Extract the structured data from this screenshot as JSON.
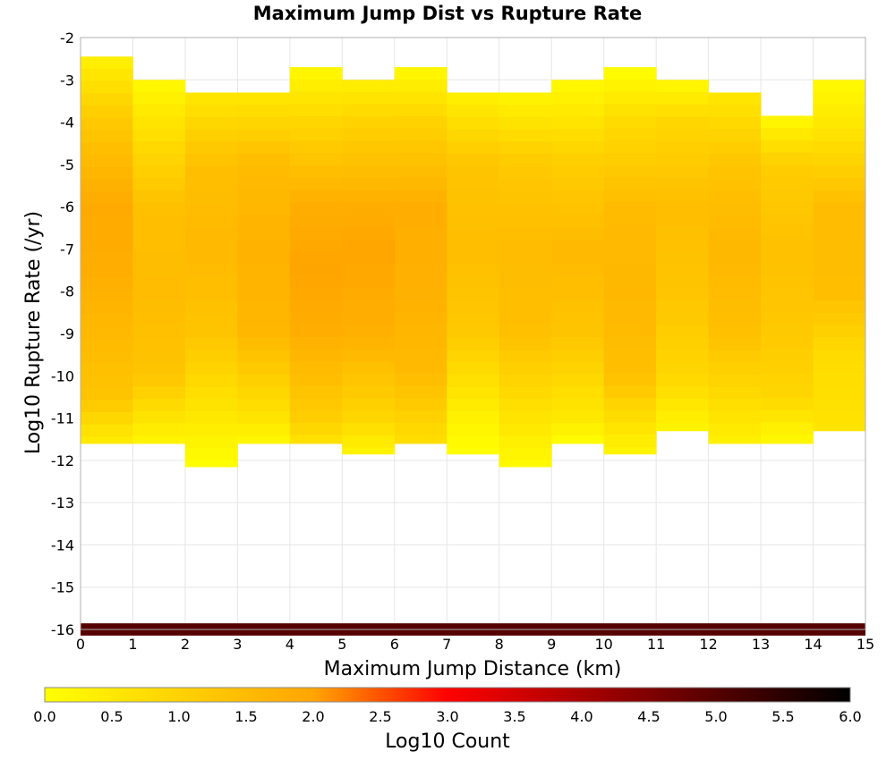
{
  "chart_data": {
    "type": "heatmap",
    "title": "Maximum Jump Dist vs Rupture Rate",
    "xlabel": "Maximum Jump Distance (km)",
    "ylabel": "Log10 Rupture Rate (/yr)",
    "xlim": [
      0,
      15
    ],
    "ylim": [
      -16,
      -2
    ],
    "x_ticks": [
      "0",
      "1",
      "2",
      "3",
      "4",
      "5",
      "6",
      "7",
      "8",
      "9",
      "10",
      "11",
      "12",
      "13",
      "14",
      "15"
    ],
    "y_ticks": [
      "-2",
      "-3",
      "-4",
      "-5",
      "-6",
      "-7",
      "-8",
      "-9",
      "-10",
      "-11",
      "-12",
      "-13",
      "-14",
      "-15",
      "-16"
    ],
    "y_bin_width": 0.29,
    "x_bin_width": 1,
    "x_bins": [
      0.5,
      1.5,
      2.5,
      3.5,
      4.5,
      5.5,
      6.5,
      7.5,
      8.5,
      9.5,
      10.5,
      11.5,
      12.5,
      13.5,
      14.5
    ],
    "grid": true,
    "colorbar": {
      "label": "Log10 Count",
      "range": [
        0,
        6
      ],
      "ticks": [
        "0.0",
        "0.5",
        "1.0",
        "1.5",
        "2.0",
        "2.5",
        "3.0",
        "3.5",
        "4.0",
        "4.5",
        "5.0",
        "5.5",
        "6.0"
      ],
      "colors": [
        "#ffff00",
        "#ffa500",
        "#ff0000",
        "#000000"
      ],
      "color_stops": [
        0,
        2,
        3,
        6
      ]
    },
    "columns": [
      {
        "x": 0.5,
        "y_top": -2.45,
        "y_bottom": -11.6,
        "profile": [
          [
            -2.45,
            0.3
          ],
          [
            -4,
            1.2
          ],
          [
            -6,
            1.9
          ],
          [
            -7.5,
            1.8
          ],
          [
            -9,
            1.55
          ],
          [
            -10.5,
            1.3
          ],
          [
            -11.6,
            0.4
          ]
        ]
      },
      {
        "x": 1.5,
        "y_top": -3.0,
        "y_bottom": -11.6,
        "profile": [
          [
            -3,
            0.1
          ],
          [
            -4,
            0.6
          ],
          [
            -6,
            1.4
          ],
          [
            -8,
            1.5
          ],
          [
            -10,
            1.3
          ],
          [
            -11.6,
            0.2
          ]
        ]
      },
      {
        "x": 2.5,
        "y_top": -3.3,
        "y_bottom": -12.15,
        "profile": [
          [
            -3.3,
            0.5
          ],
          [
            -5,
            1.4
          ],
          [
            -7,
            1.55
          ],
          [
            -9,
            1.3
          ],
          [
            -11,
            0.5
          ],
          [
            -12.15,
            0
          ]
        ]
      },
      {
        "x": 3.5,
        "y_top": -3.3,
        "y_bottom": -11.6,
        "profile": [
          [
            -3.3,
            0.5
          ],
          [
            -5,
            1.5
          ],
          [
            -7,
            1.7
          ],
          [
            -9,
            1.6
          ],
          [
            -11,
            0.6
          ],
          [
            -11.6,
            0.1
          ]
        ]
      },
      {
        "x": 4.5,
        "y_top": -2.7,
        "y_bottom": -11.6,
        "profile": [
          [
            -2.7,
            0.1
          ],
          [
            -4,
            0.9
          ],
          [
            -6,
            1.8
          ],
          [
            -7.5,
            2.0
          ],
          [
            -9,
            1.8
          ],
          [
            -11,
            1.1
          ],
          [
            -11.6,
            0.6
          ]
        ]
      },
      {
        "x": 5.5,
        "y_top": -3.0,
        "y_bottom": -11.85,
        "profile": [
          [
            -3,
            0.3
          ],
          [
            -4,
            1.0
          ],
          [
            -6,
            1.8
          ],
          [
            -7,
            2.0
          ],
          [
            -9,
            1.75
          ],
          [
            -11,
            0.9
          ],
          [
            -11.85,
            0.2
          ]
        ]
      },
      {
        "x": 6.5,
        "y_top": -2.7,
        "y_bottom": -11.6,
        "profile": [
          [
            -2.7,
            0.1
          ],
          [
            -4,
            1.0
          ],
          [
            -6,
            1.8
          ],
          [
            -8,
            1.75
          ],
          [
            -10,
            1.5
          ],
          [
            -11.6,
            0.7
          ]
        ]
      },
      {
        "x": 7.5,
        "y_top": -3.3,
        "y_bottom": -11.85,
        "profile": [
          [
            -3.3,
            0.3
          ],
          [
            -5,
            1.3
          ],
          [
            -7,
            1.45
          ],
          [
            -9,
            1.2
          ],
          [
            -11,
            0.3
          ],
          [
            -11.85,
            0
          ]
        ]
      },
      {
        "x": 8.5,
        "y_top": -3.3,
        "y_bottom": -12.15,
        "profile": [
          [
            -3.3,
            0.2
          ],
          [
            -5,
            1.2
          ],
          [
            -7,
            1.5
          ],
          [
            -9,
            1.4
          ],
          [
            -11,
            0.6
          ],
          [
            -12.15,
            0.1
          ]
        ]
      },
      {
        "x": 9.5,
        "y_top": -3.0,
        "y_bottom": -11.6,
        "profile": [
          [
            -3,
            0.1
          ],
          [
            -5,
            1.1
          ],
          [
            -7,
            1.55
          ],
          [
            -9,
            1.3
          ],
          [
            -11,
            0.5
          ],
          [
            -11.6,
            0
          ]
        ]
      },
      {
        "x": 10.5,
        "y_top": -2.7,
        "y_bottom": -11.85,
        "profile": [
          [
            -2.7,
            0.0
          ],
          [
            -4,
            0.8
          ],
          [
            -6,
            1.5
          ],
          [
            -8,
            1.6
          ],
          [
            -10,
            1.4
          ],
          [
            -11.85,
            0.2
          ]
        ]
      },
      {
        "x": 11.5,
        "y_top": -3.0,
        "y_bottom": -11.3,
        "profile": [
          [
            -3,
            0.1
          ],
          [
            -4,
            0.9
          ],
          [
            -6,
            1.45
          ],
          [
            -8,
            1.3
          ],
          [
            -10,
            0.9
          ],
          [
            -11.3,
            0.2
          ]
        ]
      },
      {
        "x": 12.5,
        "y_top": -3.3,
        "y_bottom": -11.6,
        "profile": [
          [
            -3.3,
            0.5
          ],
          [
            -5,
            1.3
          ],
          [
            -7,
            1.6
          ],
          [
            -9,
            1.4
          ],
          [
            -11,
            0.6
          ],
          [
            -11.6,
            0.3
          ]
        ]
      },
      {
        "x": 13.5,
        "y_top": -3.85,
        "y_bottom": -11.6,
        "profile": [
          [
            -3.85,
            0.1
          ],
          [
            -5,
            1.1
          ],
          [
            -7,
            1.4
          ],
          [
            -9,
            1.2
          ],
          [
            -10.5,
            0.9
          ],
          [
            -11.6,
            0.1
          ]
        ]
      },
      {
        "x": 14.5,
        "y_top": -3.0,
        "y_bottom": -11.3,
        "profile": [
          [
            -3,
            0.1
          ],
          [
            -4,
            0.5
          ],
          [
            -6,
            1.5
          ],
          [
            -8,
            1.45
          ],
          [
            -9.5,
            0.8
          ],
          [
            -11.3,
            0.6
          ]
        ]
      }
    ],
    "bottom_row": {
      "y": -16,
      "log10_count": 5.0
    }
  }
}
